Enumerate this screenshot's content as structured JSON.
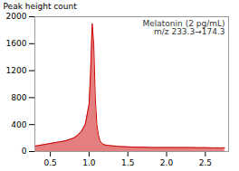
{
  "chart_data": {
    "type": "area",
    "x": [
      0.3,
      0.35,
      0.4,
      0.45,
      0.5,
      0.55,
      0.6,
      0.65,
      0.7,
      0.75,
      0.8,
      0.85,
      0.9,
      0.95,
      1.0,
      1.02,
      1.04,
      1.06,
      1.08,
      1.1,
      1.12,
      1.14,
      1.16,
      1.18,
      1.2,
      1.25,
      1.3,
      1.35,
      1.4,
      1.5,
      1.6,
      1.7,
      1.8,
      1.9,
      2.0,
      2.1,
      2.2,
      2.3,
      2.4,
      2.5,
      2.6,
      2.7,
      2.75
    ],
    "values": [
      80,
      90,
      100,
      110,
      120,
      130,
      140,
      150,
      160,
      180,
      200,
      240,
      300,
      400,
      700,
      1200,
      1900,
      1600,
      800,
      400,
      250,
      160,
      130,
      110,
      100,
      90,
      85,
      80,
      75,
      70,
      65,
      65,
      60,
      60,
      60,
      60,
      60,
      60,
      58,
      58,
      55,
      55,
      55
    ],
    "color": "#cc0000",
    "ylabel": "Peak height count",
    "xlim": [
      0.3,
      2.8
    ],
    "ylim": [
      0,
      2000
    ],
    "xticks": [
      0.5,
      {
        "value": 1,
        "label": "1.0"
      },
      1.5,
      {
        "value": 2,
        "label": "2.0"
      },
      2.5
    ],
    "yticks": [
      0,
      400,
      800,
      1200,
      1600,
      2000
    ],
    "annotations": [
      "Melatonin (2 pg/mL)",
      "m/z 233.3→174.3"
    ]
  }
}
